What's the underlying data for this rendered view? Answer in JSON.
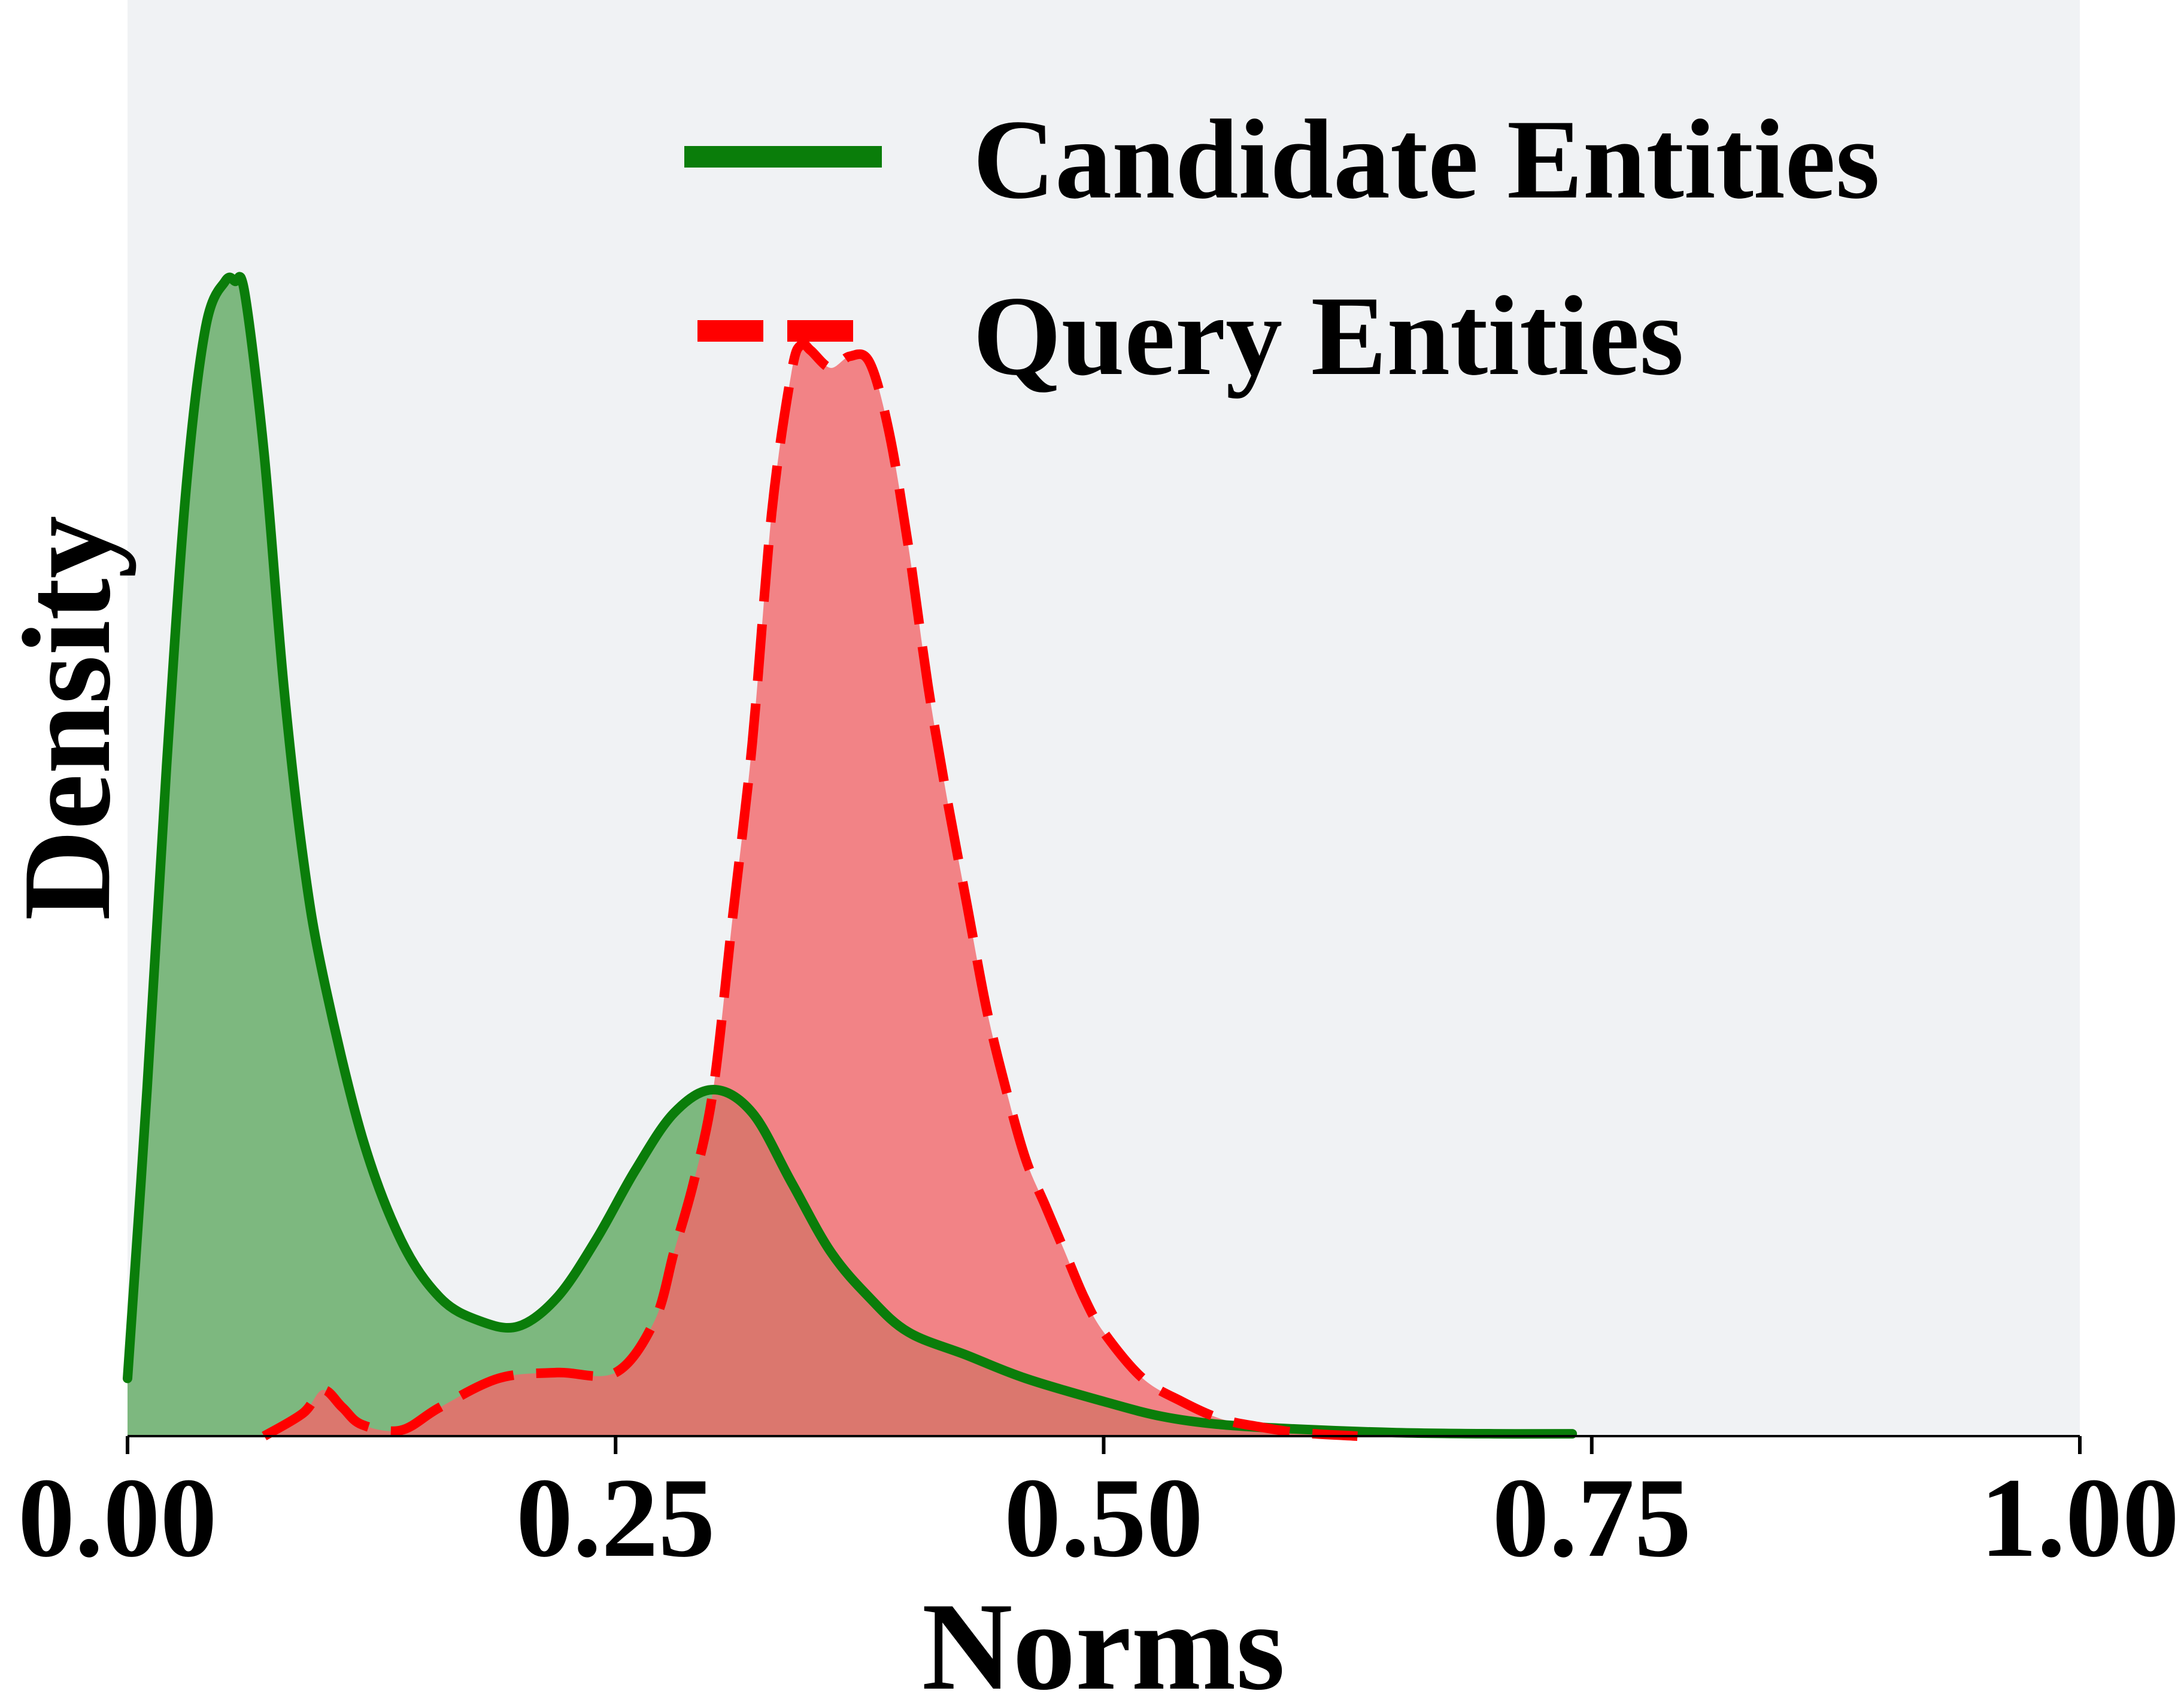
{
  "chart_data": {
    "type": "area",
    "title": "",
    "xlabel": "Norms",
    "ylabel": "Density",
    "xlim": [
      0,
      1
    ],
    "ylim": [
      0,
      1
    ],
    "xticks": [
      "0.00",
      "0.25",
      "0.50",
      "0.75",
      "1.00"
    ],
    "yticks_visible": false,
    "grid": false,
    "background": "#f0f2f4",
    "legend_position": "top-right",
    "series": [
      {
        "name": "Candidate Entities",
        "line_style": "solid",
        "line_color": "#0a7d0a",
        "fill_color": "#0a7d0a",
        "fill_opacity": 0.5,
        "x": [
          0.0,
          0.01,
          0.02,
          0.03,
          0.04,
          0.05,
          0.055,
          0.06,
          0.07,
          0.08,
          0.09,
          0.1,
          0.12,
          0.14,
          0.16,
          0.18,
          0.2,
          0.22,
          0.24,
          0.26,
          0.28,
          0.3,
          0.32,
          0.34,
          0.36,
          0.38,
          0.4,
          0.43,
          0.46,
          0.5,
          0.53,
          0.56,
          0.6,
          0.65,
          0.7,
          0.74
        ],
        "y": [
          0.05,
          0.3,
          0.58,
          0.82,
          0.96,
          1.0,
          1.0,
          0.99,
          0.85,
          0.65,
          0.5,
          0.4,
          0.26,
          0.17,
          0.12,
          0.1,
          0.095,
          0.12,
          0.17,
          0.23,
          0.28,
          0.3,
          0.28,
          0.22,
          0.16,
          0.12,
          0.09,
          0.07,
          0.05,
          0.03,
          0.017,
          0.01,
          0.006,
          0.003,
          0.002,
          0.002
        ]
      },
      {
        "name": "Query Entities",
        "line_style": "dashed",
        "line_color": "#ff0000",
        "fill_color": "#f2676a",
        "fill_opacity": 0.8,
        "x": [
          0.07,
          0.09,
          0.1,
          0.11,
          0.12,
          0.14,
          0.16,
          0.19,
          0.22,
          0.25,
          0.27,
          0.28,
          0.29,
          0.3,
          0.31,
          0.32,
          0.33,
          0.34,
          0.345,
          0.35,
          0.36,
          0.37,
          0.38,
          0.39,
          0.4,
          0.41,
          0.42,
          0.43,
          0.44,
          0.45,
          0.46,
          0.47,
          0.48,
          0.49,
          0.5,
          0.52,
          0.54,
          0.56,
          0.58,
          0.6,
          0.63
        ],
        "y": [
          0.0,
          0.02,
          0.04,
          0.025,
          0.01,
          0.005,
          0.025,
          0.05,
          0.055,
          0.055,
          0.1,
          0.16,
          0.22,
          0.3,
          0.45,
          0.6,
          0.8,
          0.92,
          0.945,
          0.94,
          0.925,
          0.935,
          0.93,
          0.87,
          0.77,
          0.65,
          0.55,
          0.46,
          0.37,
          0.3,
          0.24,
          0.2,
          0.16,
          0.12,
          0.09,
          0.05,
          0.03,
          0.015,
          0.008,
          0.003,
          0.0
        ]
      }
    ]
  }
}
